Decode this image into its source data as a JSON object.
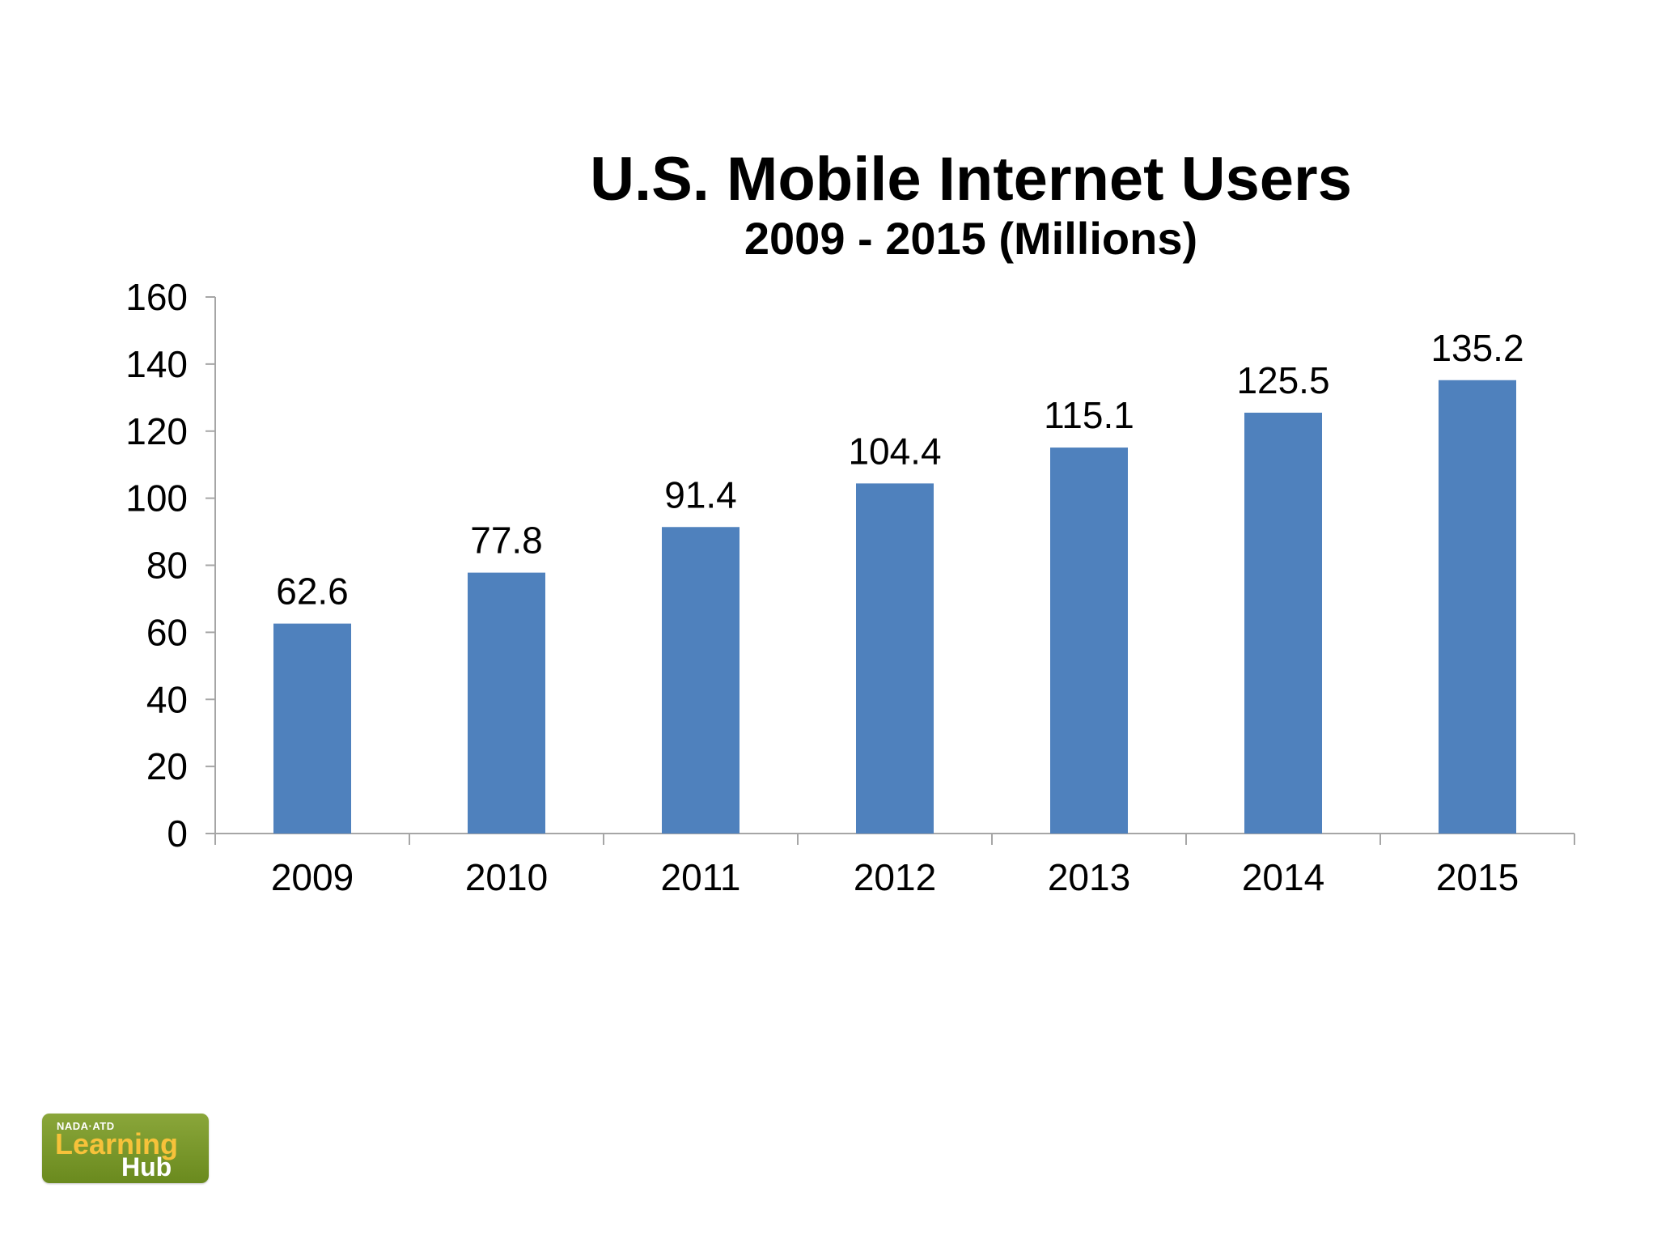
{
  "chart_data": {
    "type": "bar",
    "title": "U.S. Mobile Internet Users",
    "subtitle": "2009 - 2015 (Millions)",
    "categories": [
      "2009",
      "2010",
      "2011",
      "2012",
      "2013",
      "2014",
      "2015"
    ],
    "values": [
      62.6,
      77.8,
      91.4,
      104.4,
      115.1,
      125.5,
      135.2
    ],
    "value_labels": [
      "62.6",
      "77.8",
      "91.4",
      "104.4",
      "115.1",
      "125.5",
      "135.2"
    ],
    "xlabel": "",
    "ylabel": "",
    "ylim": [
      0,
      160
    ],
    "yticks": [
      "0",
      "20",
      "40",
      "60",
      "80",
      "100",
      "120",
      "140",
      "160"
    ],
    "grid": false,
    "legend": "none",
    "bar_color": "#4f81bd"
  },
  "logo": {
    "top_text": "NADA·ATD",
    "main_text": "Learning",
    "sub_text": "Hub",
    "background_color": "#7a9a2a",
    "main_text_color": "#f7c23a"
  }
}
